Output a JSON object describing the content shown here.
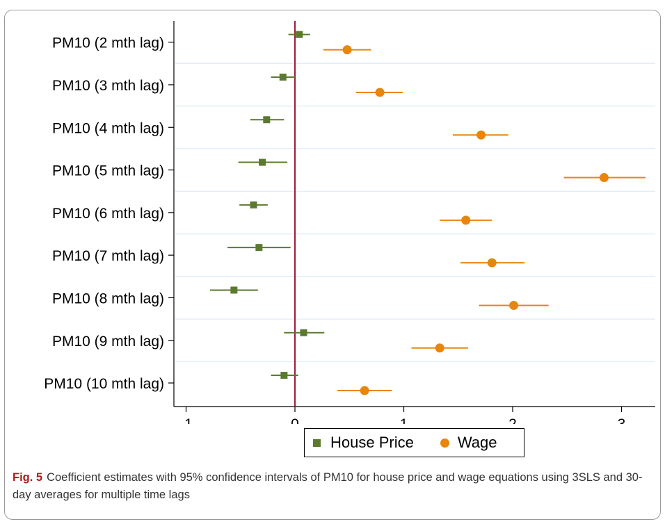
{
  "chart_data": {
    "type": "scatter",
    "subtype": "coefficient-plot-with-confidence-intervals",
    "categories": [
      "PM10 (2 mth lag)",
      "PM10 (3 mth lag)",
      "PM10 (4 mth lag)",
      "PM10 (5 mth lag)",
      "PM10 (6 mth lag)",
      "PM10 (7 mth lag)",
      "PM10 (8 mth lag)",
      "PM10 (9 mth lag)",
      "PM10 (10 mth lag)"
    ],
    "series": [
      {
        "name": "House Price",
        "marker": "square",
        "color": "#5b7a2e",
        "values": [
          0.04,
          -0.11,
          -0.26,
          -0.3,
          -0.38,
          -0.33,
          -0.56,
          0.08,
          -0.1
        ],
        "ci_low": [
          -0.06,
          -0.22,
          -0.41,
          -0.52,
          -0.51,
          -0.62,
          -0.78,
          -0.1,
          -0.22
        ],
        "ci_high": [
          0.14,
          0.0,
          -0.1,
          -0.07,
          -0.25,
          -0.04,
          -0.34,
          0.27,
          0.03
        ]
      },
      {
        "name": "Wage",
        "marker": "circle",
        "color": "#e8850c",
        "values": [
          0.48,
          0.78,
          1.71,
          2.84,
          1.57,
          1.81,
          2.01,
          1.33,
          0.64
        ],
        "ci_low": [
          0.26,
          0.56,
          1.45,
          2.47,
          1.33,
          1.52,
          1.69,
          1.07,
          0.39
        ],
        "ci_high": [
          0.7,
          0.99,
          1.96,
          3.22,
          1.81,
          2.11,
          2.33,
          1.59,
          0.89
        ]
      }
    ],
    "xticks": [
      -1,
      0,
      1,
      2,
      3
    ],
    "xlim": [
      -1.06,
      3.32
    ],
    "reference_line": {
      "x": 0,
      "color": "#9c1b3b"
    },
    "grid": "horizontal-between-categories",
    "legend_position": "bottom",
    "title": "",
    "xlabel": "",
    "ylabel": ""
  },
  "legend": {
    "house_price": "House Price",
    "wage": "Wage"
  },
  "caption": {
    "label": "Fig. 5",
    "text": "Coefficient estimates with 95% confidence intervals of PM10 for house price and wage equations using 3SLS and 30-day averages for multiple time lags"
  }
}
